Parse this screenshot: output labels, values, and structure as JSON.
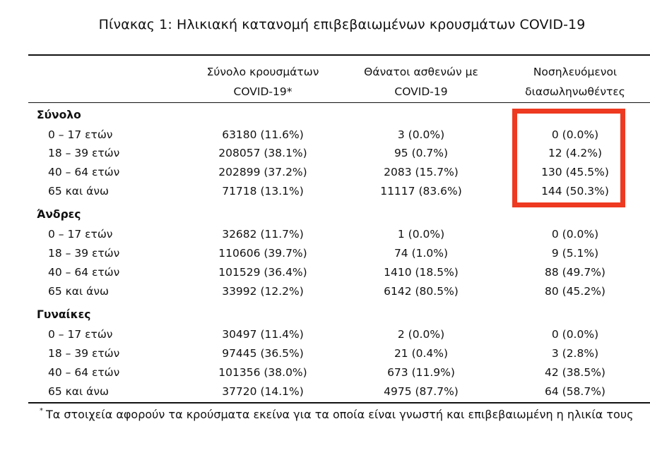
{
  "title": "Πίνακας 1: Ηλικιακή κατανομή επιβεβαιωμένων κρουσμάτων COVID-19",
  "headers": {
    "col1_line1": "Σύνολο κρουσμάτων",
    "col1_line2": "COVID-19*",
    "col2_line1": "Θάνατοι ασθενών με",
    "col2_line2": "COVID-19",
    "col3_line1": "Νοσηλευόμενοι",
    "col3_line2": "διασωληνωθέντες"
  },
  "groups": [
    {
      "label": "Σύνολο",
      "rows": [
        {
          "age": "0 – 17 ετών",
          "cases": "63180 (11.6%)",
          "deaths": "3 (0.0%)",
          "intubated": "0 (0.0%)"
        },
        {
          "age": "18 – 39 ετών",
          "cases": "208057 (38.1%)",
          "deaths": "95 (0.7%)",
          "intubated": "12 (4.2%)"
        },
        {
          "age": "40 – 64 ετών",
          "cases": "202899 (37.2%)",
          "deaths": "2083 (15.7%)",
          "intubated": "130 (45.5%)"
        },
        {
          "age": "65 και άνω",
          "cases": "71718 (13.1%)",
          "deaths": "11117 (83.6%)",
          "intubated": "144 (50.3%)"
        }
      ]
    },
    {
      "label": "Άνδρες",
      "rows": [
        {
          "age": "0 – 17 ετών",
          "cases": "32682 (11.7%)",
          "deaths": "1 (0.0%)",
          "intubated": "0 (0.0%)"
        },
        {
          "age": "18 – 39 ετών",
          "cases": "110606 (39.7%)",
          "deaths": "74 (1.0%)",
          "intubated": "9 (5.1%)"
        },
        {
          "age": "40 – 64 ετών",
          "cases": "101529 (36.4%)",
          "deaths": "1410 (18.5%)",
          "intubated": "88 (49.7%)"
        },
        {
          "age": "65 και άνω",
          "cases": "33992 (12.2%)",
          "deaths": "6142 (80.5%)",
          "intubated": "80 (45.2%)"
        }
      ]
    },
    {
      "label": "Γυναίκες",
      "rows": [
        {
          "age": "0 – 17 ετών",
          "cases": "30497 (11.4%)",
          "deaths": "2 (0.0%)",
          "intubated": "0 (0.0%)"
        },
        {
          "age": "18 – 39 ετών",
          "cases": "97445 (36.5%)",
          "deaths": "21 (0.4%)",
          "intubated": "3 (2.8%)"
        },
        {
          "age": "40 – 64 ετών",
          "cases": "101356 (38.0%)",
          "deaths": "673 (11.9%)",
          "intubated": "42 (38.5%)"
        },
        {
          "age": "65 και άνω",
          "cases": "37720 (14.1%)",
          "deaths": "4975 (87.7%)",
          "intubated": "64 (58.7%)"
        }
      ]
    }
  ],
  "footnote": {
    "marker": "*",
    "text": "Τα στοιχεία αφορούν τα κρούσματα εκείνα για τα οποία είναι γνωστή και επιβεβαιωμένη η ηλικία τους"
  },
  "colors": {
    "highlight_border": "#ee3a20",
    "text": "#111111"
  }
}
